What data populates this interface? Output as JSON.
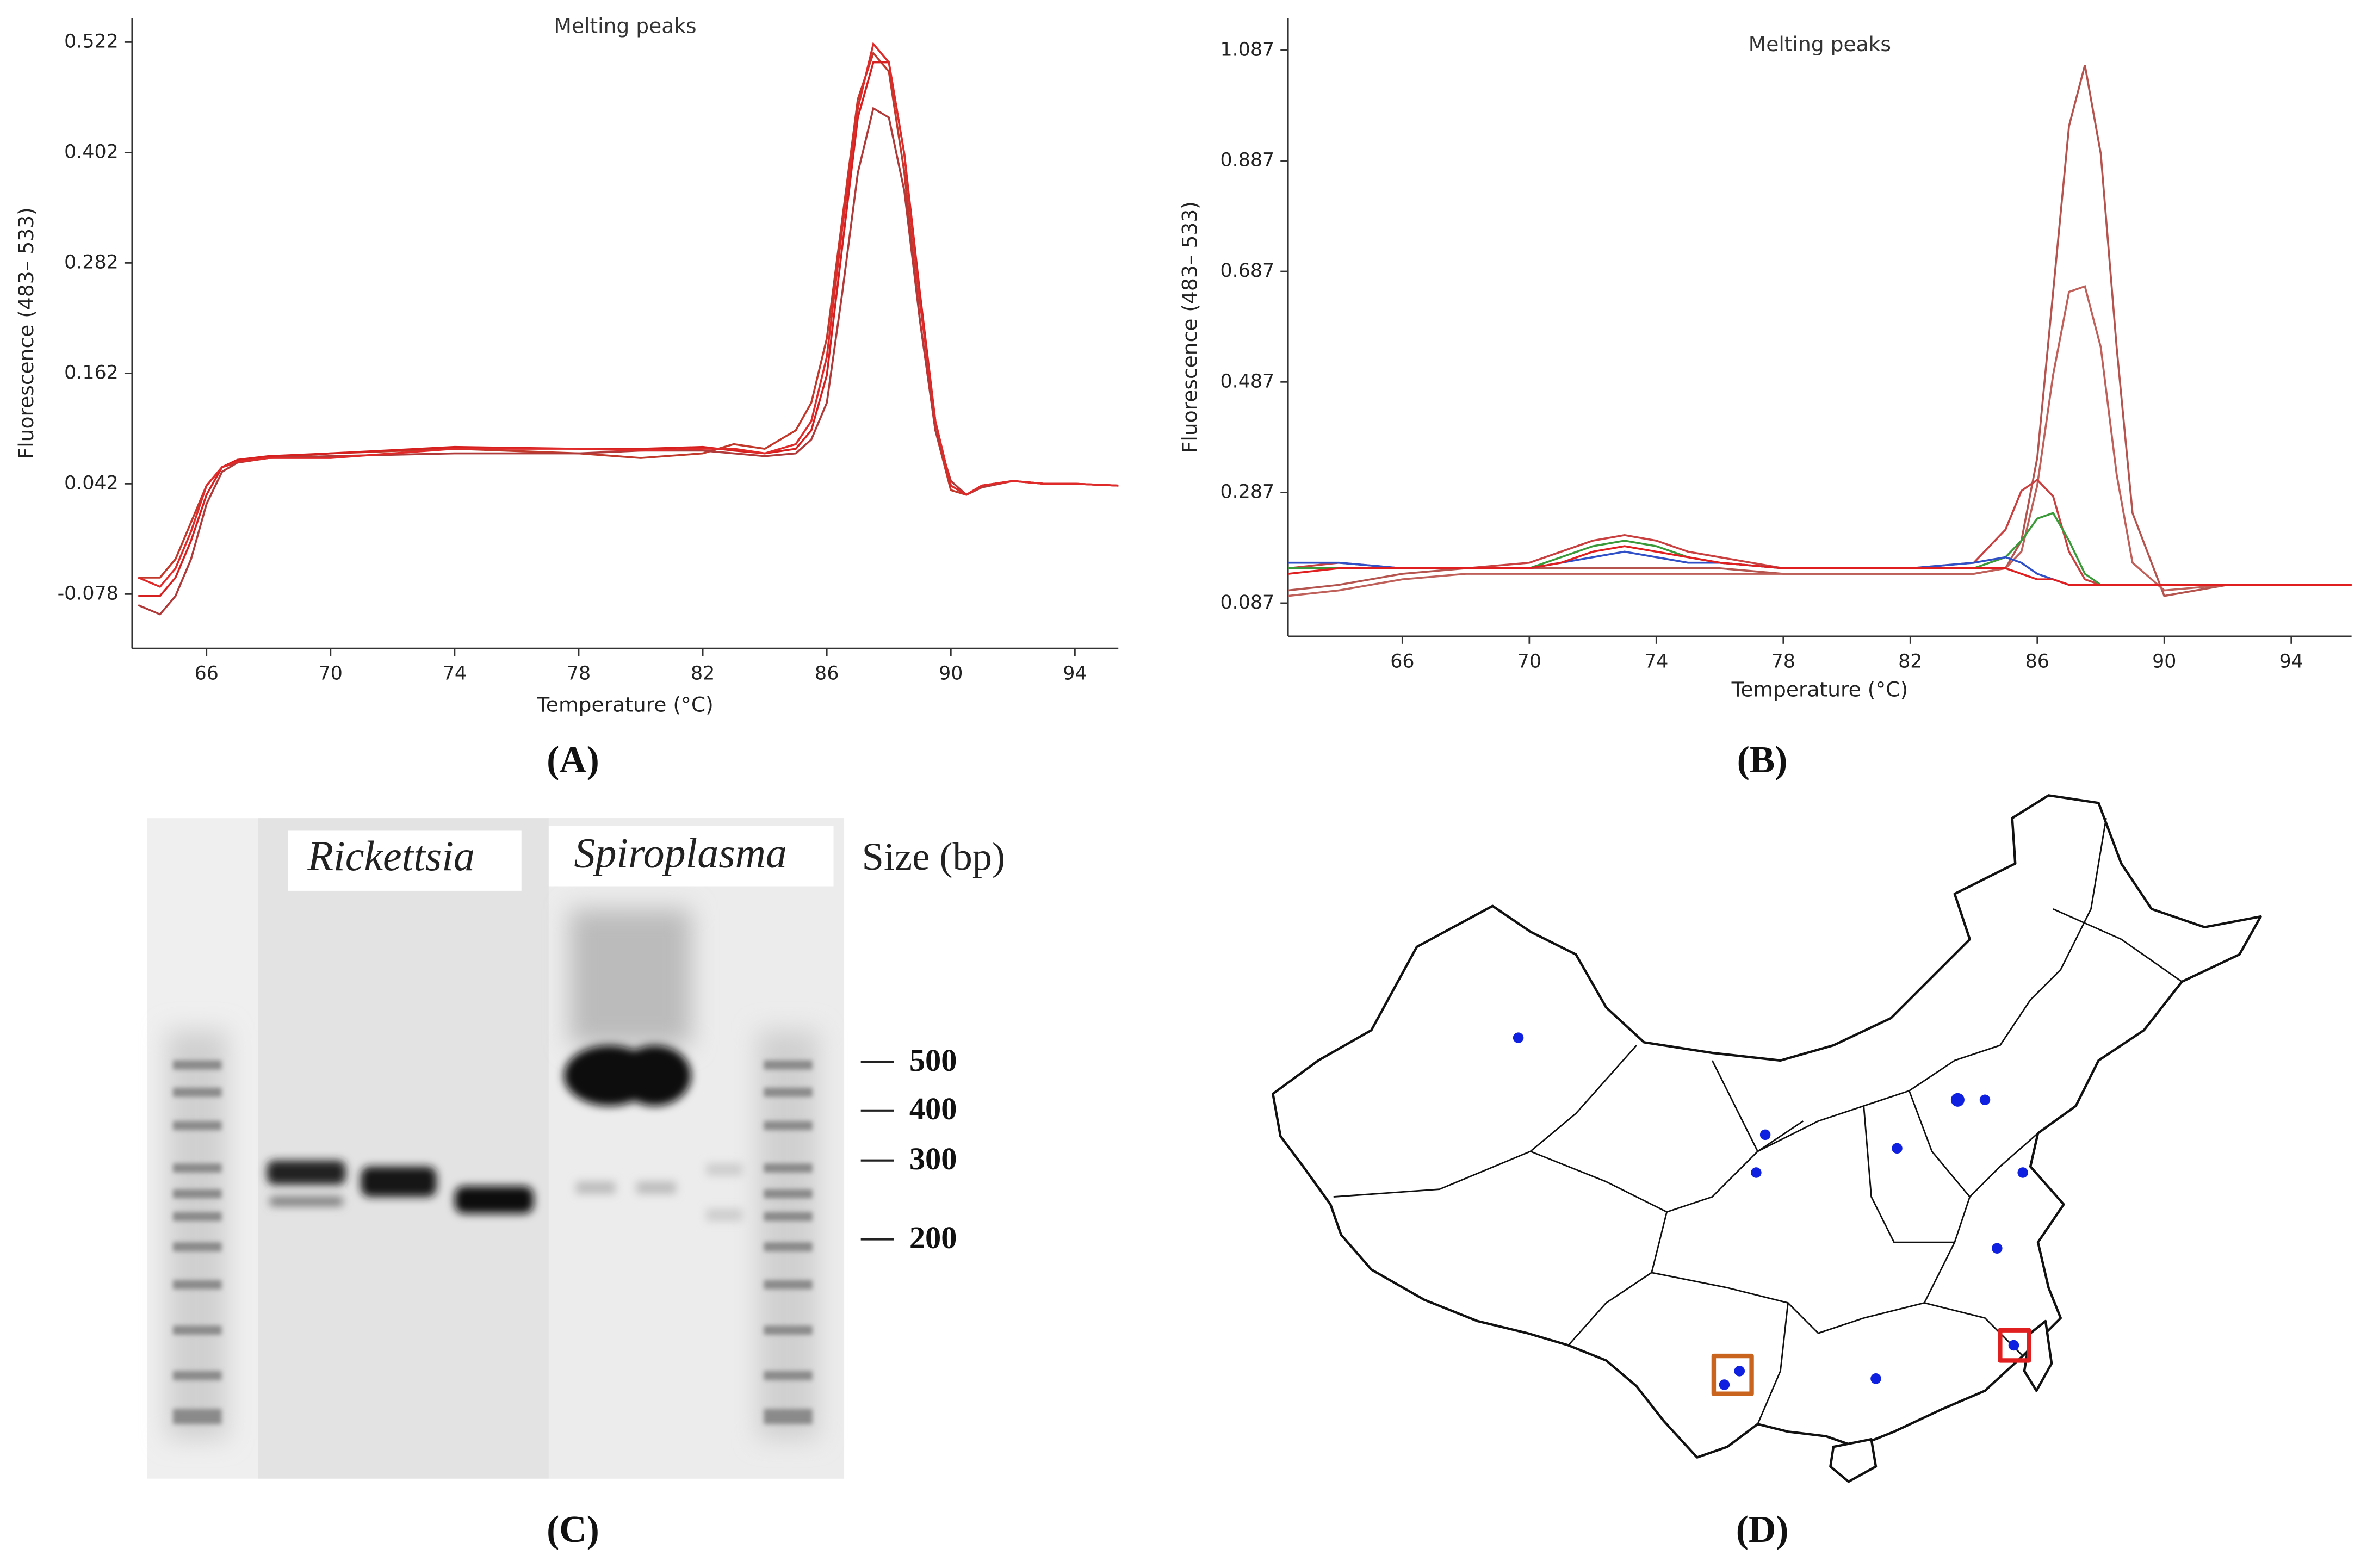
{
  "chart_data": [
    {
      "type": "line",
      "panel_label": "(A)",
      "title": "Melting peaks",
      "xlabel": "Temperature (°C)",
      "ylabel": "Fluorescence (483– 533)",
      "xlim": [
        63.6,
        95.4
      ],
      "ylim": [
        -0.137,
        0.548
      ],
      "xticks": [
        66,
        70,
        74,
        78,
        82,
        86,
        90,
        94
      ],
      "yticks": [
        -0.078,
        0.042,
        0.162,
        0.282,
        0.402,
        0.522
      ],
      "x": [
        63.8,
        64.5,
        65,
        65.5,
        66,
        66.5,
        67,
        68,
        70,
        74,
        78,
        80,
        82,
        83,
        84,
        85,
        85.5,
        86,
        86.5,
        87,
        87.5,
        88,
        88.5,
        89,
        89.5,
        90,
        90.5,
        91,
        92,
        93,
        94,
        95.4
      ],
      "series": [
        {
          "color": "#c0392b",
          "values": [
            -0.06,
            -0.06,
            -0.04,
            0.0,
            0.04,
            0.06,
            0.065,
            0.07,
            0.075,
            0.08,
            0.075,
            0.07,
            0.075,
            0.085,
            0.08,
            0.1,
            0.13,
            0.2,
            0.33,
            0.46,
            0.51,
            0.49,
            0.38,
            0.22,
            0.1,
            0.035,
            0.03,
            0.04,
            0.045,
            0.042,
            0.042,
            0.04
          ]
        },
        {
          "color": "#d62020",
          "values": [
            -0.08,
            -0.08,
            -0.06,
            -0.02,
            0.03,
            0.06,
            0.068,
            0.072,
            0.075,
            0.082,
            0.08,
            0.08,
            0.082,
            0.078,
            0.075,
            0.08,
            0.1,
            0.16,
            0.3,
            0.44,
            0.5,
            0.5,
            0.4,
            0.25,
            0.11,
            0.04,
            0.03,
            0.04,
            0.045,
            0.042,
            0.042,
            0.04
          ]
        },
        {
          "color": "#b03a3a",
          "values": [
            -0.09,
            -0.1,
            -0.08,
            -0.04,
            0.02,
            0.055,
            0.065,
            0.07,
            0.072,
            0.075,
            0.075,
            0.078,
            0.078,
            0.075,
            0.072,
            0.075,
            0.09,
            0.13,
            0.25,
            0.38,
            0.45,
            0.44,
            0.36,
            0.22,
            0.1,
            0.045,
            0.03,
            0.038,
            0.045,
            0.042,
            0.042,
            0.04
          ]
        },
        {
          "color": "#e02a2a",
          "values": [
            -0.06,
            -0.07,
            -0.05,
            -0.01,
            0.04,
            0.06,
            0.066,
            0.07,
            0.07,
            0.08,
            0.08,
            0.078,
            0.08,
            0.08,
            0.075,
            0.085,
            0.11,
            0.18,
            0.32,
            0.45,
            0.52,
            0.5,
            0.4,
            0.24,
            0.11,
            0.04,
            0.03,
            0.04,
            0.045,
            0.042,
            0.042,
            0.04
          ]
        }
      ]
    },
    {
      "type": "line",
      "panel_label": "(B)",
      "title": "Melting peaks",
      "xlabel": "Temperature (°C)",
      "ylabel": "Fluorescence (483– 533)",
      "xlim": [
        62.4,
        95.9
      ],
      "ylim": [
        0.027,
        1.145
      ],
      "xticks": [
        66,
        70,
        74,
        78,
        82,
        86,
        90,
        94
      ],
      "yticks": [
        0.087,
        0.287,
        0.487,
        0.687,
        0.887,
        1.087
      ],
      "x": [
        62.4,
        64,
        66,
        68,
        70,
        71,
        72,
        73,
        74,
        75,
        76,
        78,
        80,
        82,
        84,
        85,
        85.5,
        86,
        86.5,
        87,
        87.5,
        88,
        88.5,
        89,
        90,
        92,
        94,
        95.9
      ],
      "series": [
        {
          "color": "#b5544f",
          "values": [
            0.11,
            0.12,
            0.14,
            0.15,
            0.15,
            0.15,
            0.15,
            0.15,
            0.15,
            0.15,
            0.15,
            0.14,
            0.14,
            0.14,
            0.14,
            0.15,
            0.2,
            0.35,
            0.65,
            0.95,
            1.06,
            0.9,
            0.55,
            0.25,
            0.1,
            0.12,
            0.12,
            0.12
          ]
        },
        {
          "color": "#c0605a",
          "values": [
            0.1,
            0.11,
            0.13,
            0.14,
            0.14,
            0.14,
            0.14,
            0.14,
            0.14,
            0.14,
            0.14,
            0.14,
            0.14,
            0.14,
            0.14,
            0.15,
            0.18,
            0.3,
            0.5,
            0.65,
            0.66,
            0.55,
            0.32,
            0.16,
            0.11,
            0.12,
            0.12,
            0.12
          ]
        },
        {
          "color": "#c94040",
          "values": [
            0.15,
            0.16,
            0.15,
            0.15,
            0.16,
            0.18,
            0.2,
            0.21,
            0.2,
            0.18,
            0.17,
            0.15,
            0.15,
            0.15,
            0.16,
            0.22,
            0.29,
            0.31,
            0.28,
            0.18,
            0.13,
            0.12,
            0.12,
            0.12,
            0.12,
            0.12,
            0.12,
            0.12
          ]
        },
        {
          "color": "#3a9a3a",
          "values": [
            0.15,
            0.15,
            0.15,
            0.15,
            0.15,
            0.17,
            0.19,
            0.2,
            0.19,
            0.17,
            0.16,
            0.15,
            0.15,
            0.15,
            0.15,
            0.17,
            0.2,
            0.24,
            0.25,
            0.2,
            0.14,
            0.12,
            0.12,
            0.12,
            0.12,
            0.12,
            0.12,
            0.12
          ]
        },
        {
          "color": "#3050c8",
          "values": [
            0.16,
            0.16,
            0.15,
            0.15,
            0.15,
            0.16,
            0.17,
            0.18,
            0.17,
            0.16,
            0.16,
            0.15,
            0.15,
            0.15,
            0.16,
            0.17,
            0.16,
            0.14,
            0.13,
            0.12,
            0.12,
            0.12,
            0.12,
            0.12,
            0.12,
            0.12,
            0.12,
            0.12
          ]
        },
        {
          "color": "#e02020",
          "values": [
            0.14,
            0.15,
            0.15,
            0.15,
            0.15,
            0.16,
            0.18,
            0.19,
            0.18,
            0.17,
            0.16,
            0.15,
            0.15,
            0.15,
            0.15,
            0.15,
            0.14,
            0.13,
            0.13,
            0.12,
            0.12,
            0.12,
            0.12,
            0.12,
            0.12,
            0.12,
            0.12,
            0.12
          ]
        }
      ]
    }
  ],
  "gel": {
    "panel_label": "(C)",
    "group_labels": [
      "Rickettsia",
      "Spiroplasma"
    ],
    "size_title": "Size (bp)",
    "size_markers": [
      500,
      400,
      300,
      200
    ]
  },
  "map": {
    "panel_label": "(D)"
  }
}
